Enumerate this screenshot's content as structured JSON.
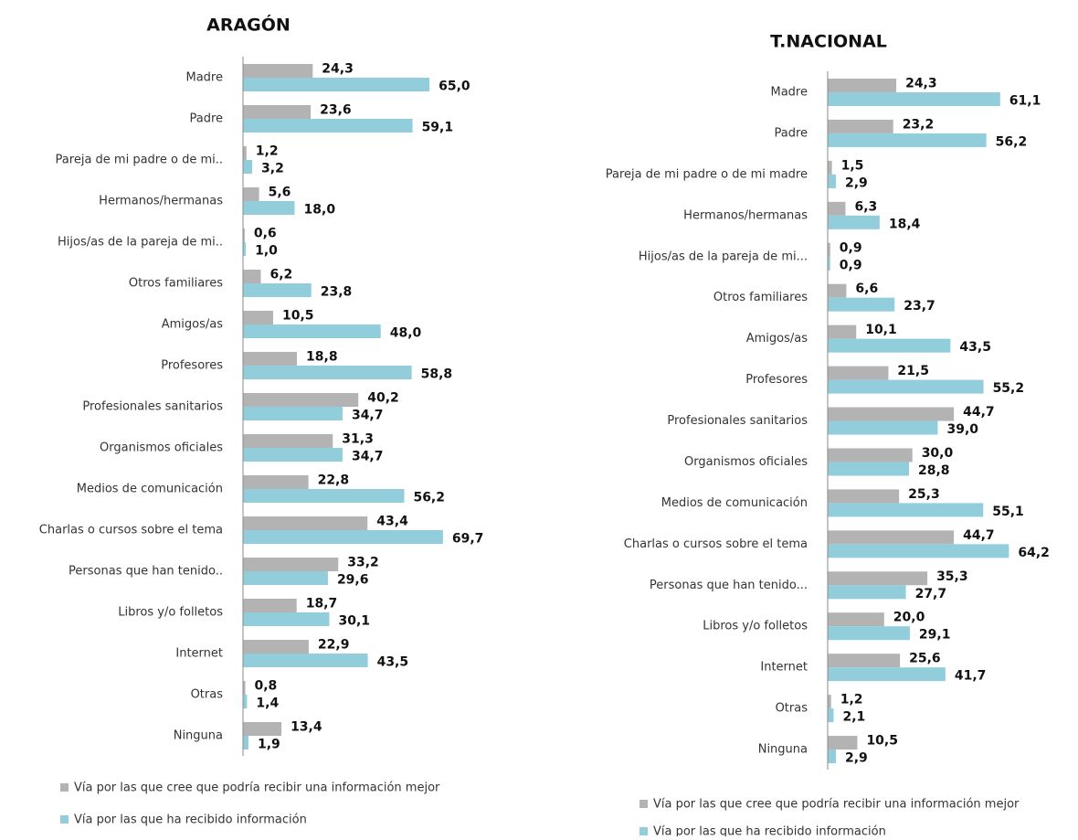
{
  "chart_data": [
    {
      "type": "bar",
      "orientation": "horizontal",
      "title": "ARAGÓN",
      "categories": [
        "Madre",
        "Padre",
        "Pareja de mi padre o de mi..",
        "Hermanos/hermanas",
        "Hijos/as de la pareja de mi..",
        "Otros familiares",
        "Amigos/as",
        "Profesores",
        "Profesionales sanitarios",
        "Organismos oficiales",
        "Medios de comunicación",
        "Charlas o cursos sobre el tema",
        "Personas que han tenido..",
        "Libros y/o folletos",
        "Internet",
        "Otras",
        "Ninguna"
      ],
      "series": [
        {
          "name": "Vía por las que cree que podría recibir una información mejor",
          "color": "#b3b3b3",
          "values": [
            24.3,
            23.6,
            1.2,
            5.6,
            0.6,
            6.2,
            10.5,
            18.8,
            40.2,
            31.3,
            22.8,
            43.4,
            33.2,
            18.7,
            22.9,
            0.8,
            13.4
          ],
          "value_labels": [
            "24,3",
            "23,6",
            "1,2",
            "5,6",
            "0,6",
            "6,2",
            "10,5",
            "18,8",
            "40,2",
            "31,3",
            "22,8",
            "43,4",
            "33,2",
            "18,7",
            "22,9",
            "0,8",
            "13,4"
          ]
        },
        {
          "name": "Vía por las que ha recibido información",
          "color": "#92cddc",
          "values": [
            65.0,
            59.1,
            3.2,
            18.0,
            1.0,
            23.8,
            48.0,
            58.8,
            34.7,
            34.7,
            56.2,
            69.7,
            29.6,
            30.1,
            43.5,
            1.4,
            1.9
          ],
          "value_labels": [
            "65,0",
            "59,1",
            "3,2",
            "18,0",
            "1,0",
            "23,8",
            "48,0",
            "58,8",
            "34,7",
            "34,7",
            "56,2",
            "69,7",
            "29,6",
            "30,1",
            "43,5",
            "1,4",
            "1,9"
          ]
        }
      ]
    },
    {
      "type": "bar",
      "orientation": "horizontal",
      "title": "T.NACIONAL",
      "categories": [
        "Madre",
        "Padre",
        "Pareja de mi padre o de mi madre",
        "Hermanos/hermanas",
        "Hijos/as de la pareja de mi...",
        "Otros familiares",
        "Amigos/as",
        "Profesores",
        "Profesionales sanitarios",
        "Organismos oficiales",
        "Medios de comunicación",
        "Charlas o cursos sobre el tema",
        "Personas que han tenido...",
        "Libros y/o folletos",
        "Internet",
        "Otras",
        "Ninguna"
      ],
      "series": [
        {
          "name": "Vía por las que cree que podría recibir una información mejor",
          "color": "#b3b3b3",
          "values": [
            24.3,
            23.2,
            1.5,
            6.3,
            0.9,
            6.6,
            10.1,
            21.5,
            44.7,
            30.0,
            25.3,
            44.7,
            35.3,
            20.0,
            25.6,
            1.2,
            10.5
          ],
          "value_labels": [
            "24,3",
            "23,2",
            "1,5",
            "6,3",
            "0,9",
            "6,6",
            "10,1",
            "21,5",
            "44,7",
            "30,0",
            "25,3",
            "44,7",
            "35,3",
            "20,0",
            "25,6",
            "1,2",
            "10,5"
          ]
        },
        {
          "name": "Vía por las que ha recibido información",
          "color": "#92cddc",
          "values": [
            61.1,
            56.2,
            2.9,
            18.4,
            0.9,
            23.7,
            43.5,
            55.2,
            39.0,
            28.8,
            55.1,
            64.2,
            27.7,
            29.1,
            41.7,
            2.1,
            2.9
          ],
          "value_labels": [
            "61,1",
            "56,2",
            "2,9",
            "18,4",
            "0,9",
            "23,7",
            "43,5",
            "55,2",
            "39,0",
            "28,8",
            "55,1",
            "64,2",
            "27,7",
            "29,1",
            "41,7",
            "2,1",
            "2,9"
          ]
        }
      ]
    }
  ]
}
